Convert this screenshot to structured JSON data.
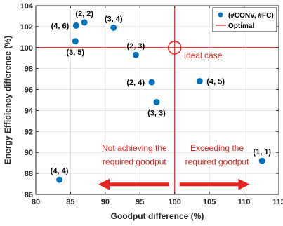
{
  "colors": {
    "point": "#0072bd",
    "optimal": "#e8231e",
    "axis": "#262626",
    "grid": "#dfdfdf"
  },
  "chart_data": {
    "type": "scatter",
    "xlabel": "Goodput difference (%)",
    "ylabel": "Energy Efficiency difference (%)",
    "xlim": [
      80,
      115
    ],
    "ylim": [
      86,
      104
    ],
    "xticks": [
      80,
      85,
      90,
      95,
      100,
      105,
      110,
      115
    ],
    "yticks": [
      86,
      88,
      90,
      92,
      94,
      96,
      98,
      100,
      102,
      104
    ],
    "grid": true,
    "legend": {
      "placement": "top-right",
      "entries": [
        {
          "label": "(#CONV, #FC)",
          "marker": "dot"
        },
        {
          "label": "Optimal",
          "marker": "line"
        }
      ]
    },
    "series": [
      {
        "name": "(#CONV, #FC)",
        "points": [
          {
            "label": "(2, 2)",
            "x": 87.0,
            "y": 102.4,
            "label_pos": "above"
          },
          {
            "label": "(4, 6)",
            "x": 85.8,
            "y": 102.1,
            "label_pos": "left"
          },
          {
            "label": "(3, 4)",
            "x": 91.2,
            "y": 101.9,
            "label_pos": "above"
          },
          {
            "label": "(3, 5)",
            "x": 85.7,
            "y": 100.6,
            "label_pos": "below"
          },
          {
            "label": "(2, 3)",
            "x": 94.4,
            "y": 99.3,
            "label_pos": "above"
          },
          {
            "label": "(2, 4)",
            "x": 96.7,
            "y": 96.7,
            "label_pos": "left"
          },
          {
            "label": "(4, 5)",
            "x": 103.6,
            "y": 96.8,
            "label_pos": "right"
          },
          {
            "label": "(3, 3)",
            "x": 97.4,
            "y": 94.8,
            "label_pos": "below"
          },
          {
            "label": "(1, 1)",
            "x": 112.6,
            "y": 89.2,
            "label_pos": "above"
          },
          {
            "label": "(4, 4)",
            "x": 83.4,
            "y": 87.4,
            "label_pos": "above"
          }
        ]
      }
    ],
    "optimal_lines": {
      "x": 100,
      "y": 100
    },
    "annotations": {
      "ideal": {
        "text": "Ideal case",
        "x": 100,
        "y": 100
      },
      "left_text": [
        "Not achieving the",
        "required goodput"
      ],
      "right_text": [
        "Exceeding the",
        "required goodput"
      ]
    }
  }
}
